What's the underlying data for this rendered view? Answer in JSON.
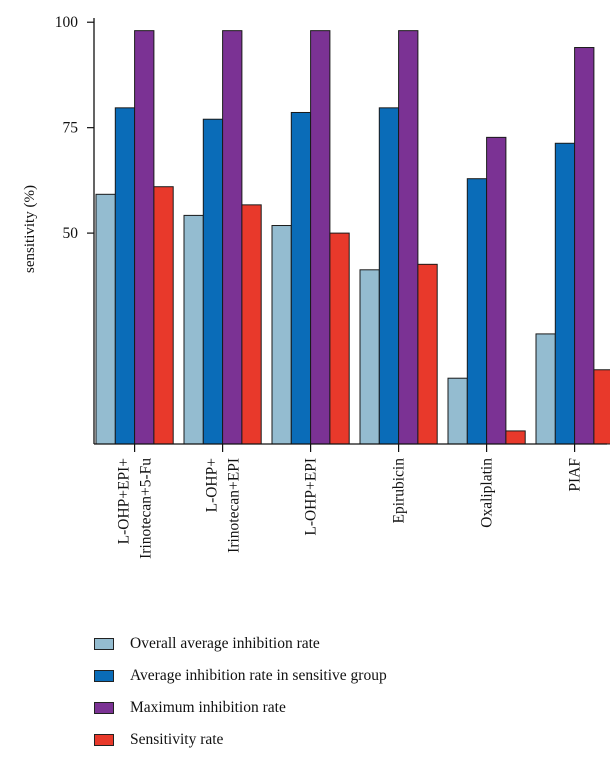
{
  "chart_data": {
    "type": "bar",
    "ylabel": "sensitivity (%)",
    "xlabel": "",
    "ylim": [
      0,
      100
    ],
    "yticks": [
      "50",
      "75",
      "100"
    ],
    "categories": [
      [
        "L-OHP+EPI+",
        "Irinotecan+5-Fu"
      ],
      [
        "L-OHP+",
        "Irinotecan+EPI"
      ],
      [
        "L-OHP+EPI"
      ],
      [
        "Epirubicin"
      ],
      [
        "Oxaliplatin"
      ],
      [
        "PIAF"
      ]
    ],
    "series": [
      {
        "name": "Overall average inhibition rate",
        "color": "#94bcd0",
        "values": [
          59.2,
          54.2,
          51.8,
          41.3,
          15.6,
          26.1
        ]
      },
      {
        "name": "Average inhibition rate in sensitive group",
        "color": "#0a6cb8",
        "values": [
          79.7,
          77.0,
          78.6,
          79.7,
          62.9,
          71.3
        ]
      },
      {
        "name": "Maximum inhibition rate",
        "color": "#7b3294",
        "values": [
          98.0,
          98.0,
          98.0,
          98.0,
          72.7,
          94.0
        ]
      },
      {
        "name": "Sensitivity rate",
        "color": "#e8392b",
        "values": [
          61.0,
          56.7,
          50.0,
          42.6,
          3.1,
          17.6
        ]
      }
    ],
    "grid": false,
    "legend_position": "bottom"
  },
  "legend": {
    "items": [
      {
        "label": "Overall average inhibition rate",
        "color": "#94bcd0"
      },
      {
        "label": "Average inhibition rate in sensitive group",
        "color": "#0a6cb8"
      },
      {
        "label": "Maximum inhibition rate",
        "color": "#7b3294"
      },
      {
        "label": "Sensitivity rate",
        "color": "#e8392b"
      }
    ]
  }
}
